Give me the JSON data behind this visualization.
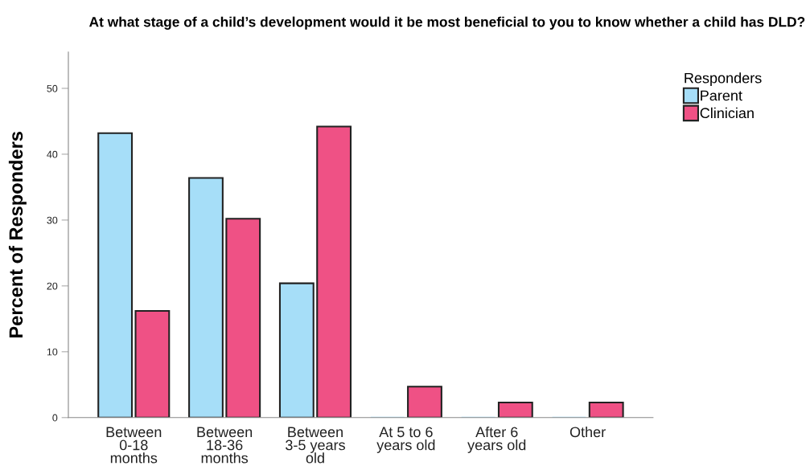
{
  "chart_data": {
    "type": "bar",
    "title": "At what stage of a child’s development would it be most beneficial to you to know whether a child has DLD?",
    "ylabel": "Percent of Responders",
    "legend_title": "Responders",
    "categories": [
      "Between\n0-18\nmonths",
      "Between\n18-36\nmonths",
      "Between\n3-5 years\nold",
      "At 5 to 6\nyears old",
      "After 6\nyears old",
      "Other"
    ],
    "series": [
      {
        "name": "Parent",
        "color": "#a6def8",
        "values": [
          43.2,
          36.4,
          20.4,
          0,
          0,
          0
        ]
      },
      {
        "name": "Clinician",
        "color": "#ef5185",
        "values": [
          16.2,
          30.2,
          44.2,
          4.7,
          2.3,
          2.3
        ]
      }
    ],
    "ylim": [
      0,
      55.5
    ],
    "yticks": [
      0,
      10,
      20,
      30,
      40,
      50
    ],
    "grid": false,
    "legend": "top right"
  }
}
